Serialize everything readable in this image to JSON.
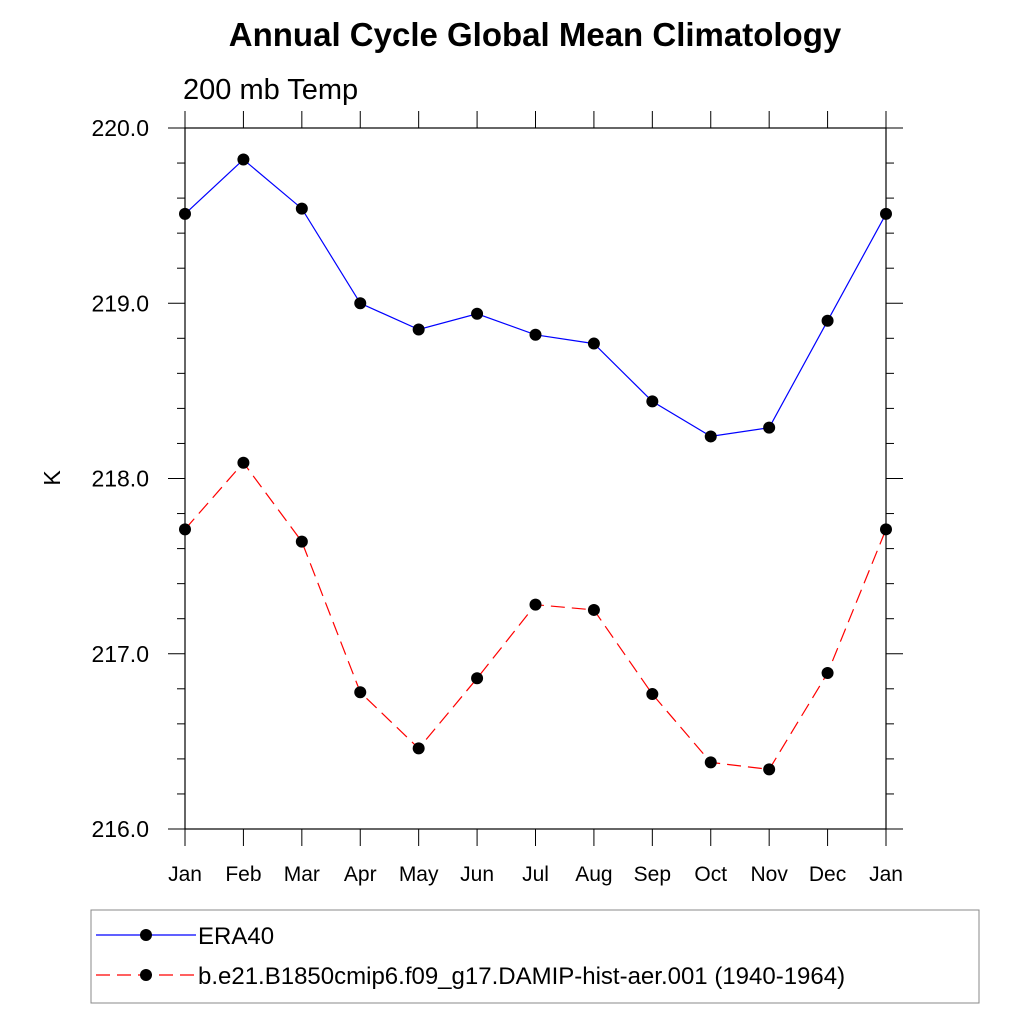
{
  "chart_data": {
    "type": "line",
    "title": "Annual Cycle Global Mean Climatology",
    "subtitle": "200 mb Temp",
    "ylabel": "K",
    "xlabel": "",
    "categories": [
      "Jan",
      "Feb",
      "Mar",
      "Apr",
      "May",
      "Jun",
      "Jul",
      "Aug",
      "Sep",
      "Oct",
      "Nov",
      "Dec",
      "Jan"
    ],
    "ylim": [
      216.0,
      220.0
    ],
    "yticks": [
      "216.0",
      "217.0",
      "218.0",
      "219.0",
      "220.0"
    ],
    "grid": false,
    "legend_position": "bottom",
    "series": [
      {
        "name": "ERA40",
        "color": "#0000ff",
        "line_style": "solid",
        "marker": "filled-circle",
        "values": [
          219.51,
          219.82,
          219.54,
          219.0,
          218.85,
          218.94,
          218.82,
          218.77,
          218.44,
          218.24,
          218.29,
          218.9,
          219.51
        ]
      },
      {
        "name": "b.e21.B1850cmip6.f09_g17.DAMIP-hist-aer.001 (1940-1964)",
        "color": "#ff0000",
        "line_style": "dashed",
        "marker": "filled-circle",
        "values": [
          217.71,
          218.09,
          217.64,
          216.78,
          216.46,
          216.86,
          217.28,
          217.25,
          216.77,
          216.38,
          216.34,
          216.89,
          217.71
        ]
      }
    ]
  }
}
